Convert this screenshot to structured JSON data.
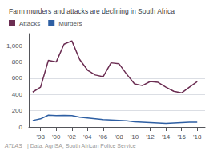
{
  "chart_data": {
    "type": "line",
    "title": "Farm murders and attacks are declining in South Africa",
    "x": [
      1997,
      1998,
      1999,
      2000,
      2001,
      2002,
      2003,
      2004,
      2005,
      2006,
      2007,
      2008,
      2009,
      2010,
      2011,
      2012,
      2013,
      2014,
      2015,
      2016,
      2017,
      2018
    ],
    "series": [
      {
        "name": "Attacks",
        "color": "#6b2d52",
        "values": [
          430,
          490,
          820,
          800,
          1020,
          1060,
          830,
          700,
          640,
          620,
          790,
          780,
          650,
          530,
          510,
          560,
          550,
          490,
          440,
          420,
          490,
          560
        ]
      },
      {
        "name": "Murders",
        "color": "#2e5fa3",
        "values": [
          80,
          100,
          145,
          140,
          142,
          140,
          120,
          110,
          100,
          90,
          85,
          80,
          75,
          65,
          60,
          55,
          50,
          45,
          50,
          55,
          58,
          60
        ]
      }
    ],
    "xlim": [
      1996.5,
      2019.0
    ],
    "ylim": [
      0,
      1150
    ],
    "xticks": [
      {
        "value": 1998,
        "label": "'98"
      },
      {
        "value": 2000,
        "label": "'00"
      },
      {
        "value": 2002,
        "label": "'02"
      },
      {
        "value": 2004,
        "label": "'04"
      },
      {
        "value": 2006,
        "label": "'06"
      },
      {
        "value": 2008,
        "label": "'08"
      },
      {
        "value": 2010,
        "label": "'10"
      },
      {
        "value": 2012,
        "label": "'12"
      },
      {
        "value": 2014,
        "label": "'14"
      },
      {
        "value": 2016,
        "label": "'16"
      },
      {
        "value": 2018,
        "label": "'18"
      }
    ],
    "yticks": [
      0,
      200,
      400,
      600,
      800,
      {
        "value": 1000,
        "label": "1,000"
      }
    ],
    "grid": true,
    "legend": "upper left",
    "annotations": [
      "ATLAS",
      "| Data: AgriSA, South African Police Service"
    ]
  }
}
